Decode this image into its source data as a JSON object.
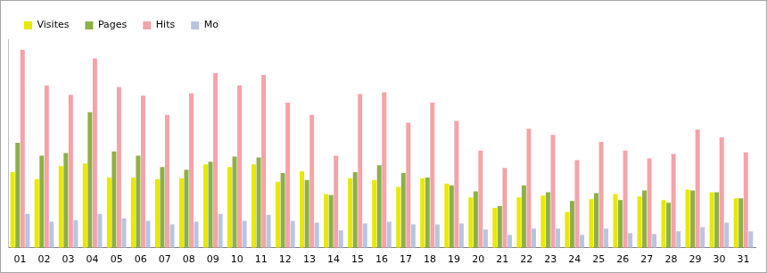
{
  "chart_data": {
    "type": "bar",
    "categories": [
      "01",
      "02",
      "03",
      "04",
      "05",
      "06",
      "07",
      "08",
      "09",
      "10",
      "11",
      "12",
      "13",
      "14",
      "15",
      "16",
      "17",
      "18",
      "19",
      "20",
      "21",
      "22",
      "23",
      "24",
      "25",
      "26",
      "27",
      "28",
      "29",
      "30",
      "31"
    ],
    "series": [
      {
        "name": "Visites",
        "color": "#e8e800",
        "values": [
          87,
          79,
          94,
          97,
          81,
          81,
          79,
          80,
          96,
          93,
          96,
          76,
          88,
          62,
          80,
          78,
          70,
          80,
          74,
          58,
          46,
          58,
          60,
          41,
          56,
          62,
          59,
          55,
          67,
          64,
          57
        ]
      },
      {
        "name": "Pages",
        "color": "#8db04a",
        "values": [
          121,
          106,
          109,
          156,
          111,
          106,
          93,
          90,
          99,
          105,
          104,
          86,
          78,
          61,
          87,
          95,
          86,
          81,
          72,
          65,
          48,
          72,
          64,
          54,
          63,
          55,
          66,
          52,
          66,
          64,
          57
        ]
      },
      {
        "name": "Hits",
        "color": "#f4a3a8",
        "values": [
          228,
          187,
          176,
          218,
          185,
          175,
          153,
          178,
          201,
          187,
          199,
          167,
          153,
          106,
          177,
          179,
          144,
          167,
          146,
          112,
          92,
          137,
          130,
          101,
          122,
          112,
          103,
          108,
          136,
          127,
          110
        ]
      },
      {
        "name": "Mo",
        "color": "#b7c5df",
        "values": [
          39,
          30,
          32,
          39,
          34,
          31,
          27,
          30,
          39,
          31,
          38,
          31,
          29,
          20,
          28,
          30,
          27,
          27,
          28,
          21,
          15,
          22,
          22,
          15,
          22,
          17,
          16,
          19,
          24,
          29,
          19
        ]
      }
    ],
    "ylim": [
      0,
      240
    ],
    "grid": false,
    "legend": "top-left",
    "tick_labels": "x"
  }
}
